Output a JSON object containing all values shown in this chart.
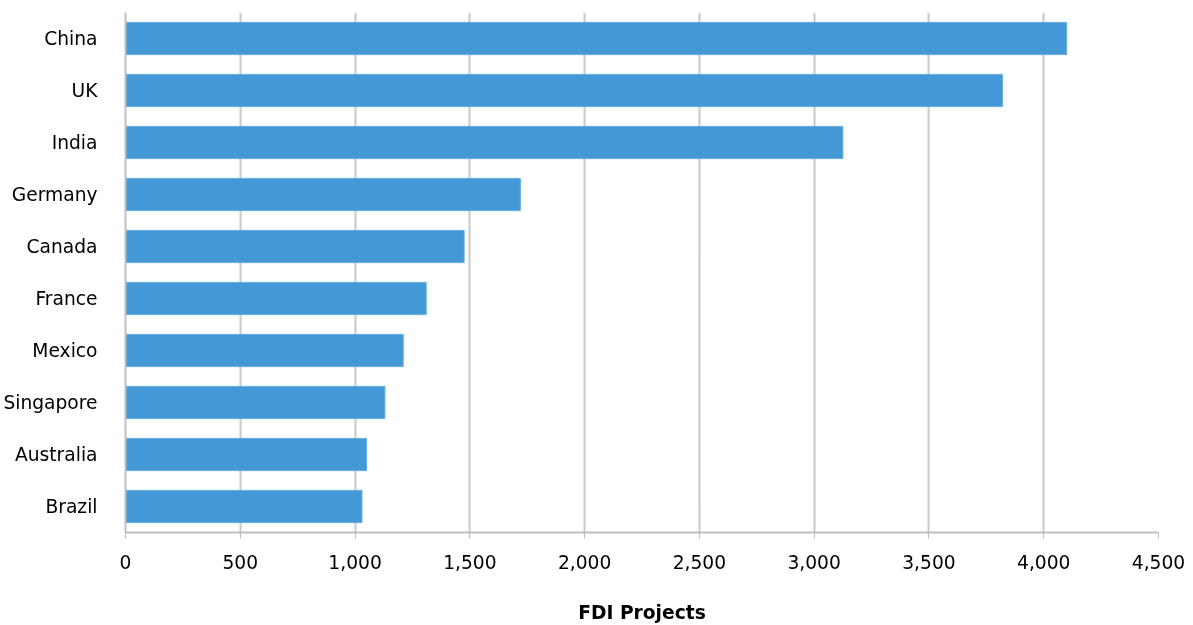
{
  "chart_data": {
    "type": "bar",
    "orientation": "horizontal",
    "categories": [
      "China",
      "UK",
      "India",
      "Germany",
      "Canada",
      "France",
      "Mexico",
      "Singapore",
      "Australia",
      "Brazil"
    ],
    "values": [
      4100,
      3820,
      3125,
      1720,
      1475,
      1310,
      1210,
      1130,
      1050,
      1030
    ],
    "color": "#4398d5",
    "xlabel": "FDI Projects",
    "xlim": [
      0,
      4500
    ],
    "xticks": [
      {
        "value": 0,
        "label": "0"
      },
      {
        "value": 500,
        "label": "500"
      },
      {
        "value": 1000,
        "label": "1,000"
      },
      {
        "value": 1500,
        "label": "1,500"
      },
      {
        "value": 2000,
        "label": "2,000"
      },
      {
        "value": 2500,
        "label": "2,500"
      },
      {
        "value": 3000,
        "label": "3,000"
      },
      {
        "value": 3500,
        "label": "3,500"
      },
      {
        "value": 4000,
        "label": "4,000"
      },
      {
        "value": 4500,
        "label": "4,500"
      }
    ],
    "grid": "x"
  }
}
